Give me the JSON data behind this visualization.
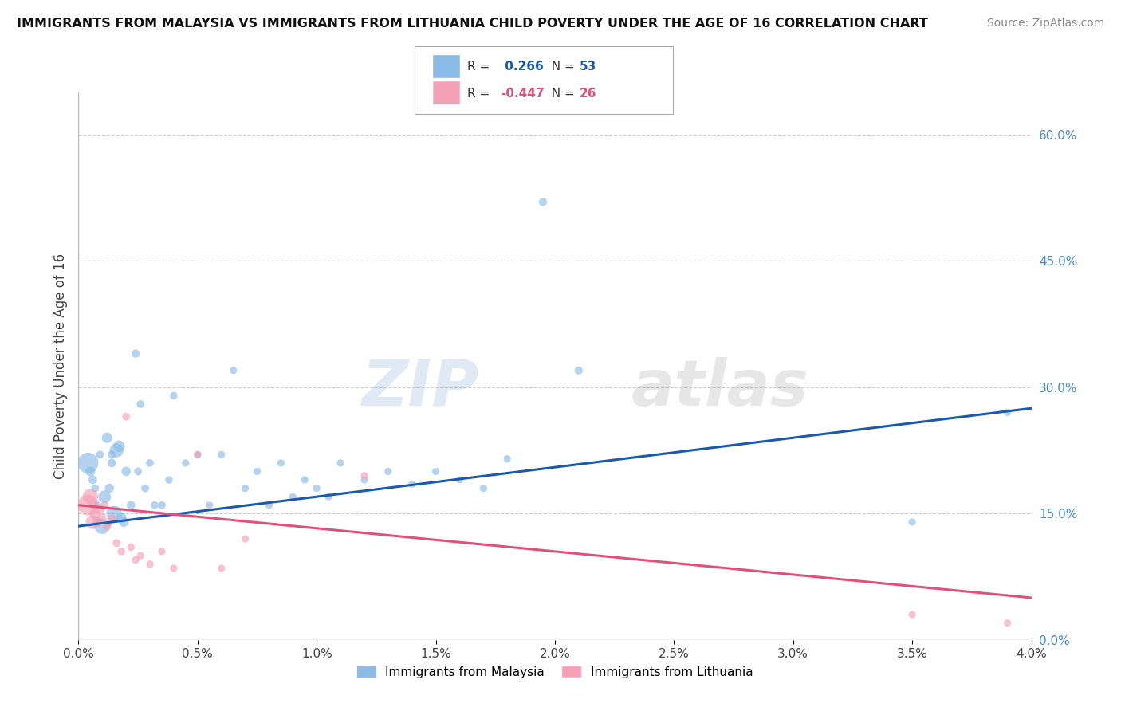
{
  "title": "IMMIGRANTS FROM MALAYSIA VS IMMIGRANTS FROM LITHUANIA CHILD POVERTY UNDER THE AGE OF 16 CORRELATION CHART",
  "source": "Source: ZipAtlas.com",
  "ylabel": "Child Poverty Under the Age of 16",
  "xmin": 0.0,
  "xmax": 4.0,
  "ymin": 0.0,
  "ymax": 65.0,
  "right_yticks": [
    0.0,
    15.0,
    30.0,
    45.0,
    60.0
  ],
  "malaysia_R": 0.266,
  "malaysia_N": 53,
  "lithuania_R": -0.447,
  "lithuania_N": 26,
  "malaysia_color": "#8bbce8",
  "lithuania_color": "#f4a0b5",
  "malaysia_line_color": "#1a5aaa",
  "lithuania_line_color": "#e0507a",
  "malaysia_x": [
    0.04,
    0.05,
    0.06,
    0.07,
    0.08,
    0.09,
    0.1,
    0.11,
    0.12,
    0.13,
    0.14,
    0.14,
    0.15,
    0.16,
    0.17,
    0.18,
    0.19,
    0.2,
    0.22,
    0.24,
    0.25,
    0.26,
    0.28,
    0.3,
    0.32,
    0.35,
    0.38,
    0.4,
    0.45,
    0.5,
    0.55,
    0.6,
    0.65,
    0.7,
    0.75,
    0.8,
    0.85,
    0.9,
    0.95,
    1.0,
    1.05,
    1.1,
    1.2,
    1.3,
    1.4,
    1.5,
    1.6,
    1.7,
    1.8,
    1.95,
    2.1,
    3.5,
    3.9
  ],
  "malaysia_y": [
    21.0,
    20.0,
    19.0,
    18.0,
    16.0,
    22.0,
    13.5,
    17.0,
    24.0,
    18.0,
    21.0,
    22.0,
    15.0,
    22.5,
    23.0,
    14.5,
    14.0,
    20.0,
    16.0,
    34.0,
    20.0,
    28.0,
    18.0,
    21.0,
    16.0,
    16.0,
    19.0,
    29.0,
    21.0,
    22.0,
    16.0,
    22.0,
    32.0,
    18.0,
    20.0,
    16.0,
    21.0,
    17.0,
    19.0,
    18.0,
    17.0,
    21.0,
    19.0,
    20.0,
    18.5,
    20.0,
    19.0,
    18.0,
    21.5,
    52.0,
    32.0,
    14.0,
    27.0
  ],
  "malaysia_sizes": [
    350,
    80,
    60,
    50,
    50,
    50,
    200,
    130,
    90,
    70,
    60,
    55,
    200,
    160,
    110,
    90,
    80,
    70,
    60,
    55,
    50,
    50,
    50,
    50,
    48,
    48,
    46,
    46,
    44,
    44,
    44,
    44,
    44,
    44,
    44,
    44,
    44,
    44,
    44,
    44,
    44,
    44,
    44,
    44,
    44,
    44,
    44,
    44,
    44,
    55,
    55,
    44,
    44
  ],
  "lithuania_x": [
    0.04,
    0.05,
    0.06,
    0.07,
    0.08,
    0.09,
    0.1,
    0.11,
    0.12,
    0.13,
    0.14,
    0.16,
    0.18,
    0.2,
    0.22,
    0.24,
    0.26,
    0.3,
    0.35,
    0.4,
    0.5,
    0.6,
    0.7,
    1.2,
    3.5,
    3.9
  ],
  "lithuania_y": [
    16.0,
    17.0,
    14.0,
    15.0,
    14.0,
    15.5,
    14.5,
    16.0,
    13.5,
    14.0,
    14.5,
    11.5,
    10.5,
    26.5,
    11.0,
    9.5,
    10.0,
    9.0,
    10.5,
    8.5,
    22.0,
    8.5,
    12.0,
    19.5,
    3.0,
    2.0
  ],
  "lithuania_sizes": [
    350,
    200,
    160,
    100,
    80,
    70,
    60,
    55,
    55,
    50,
    50,
    50,
    48,
    48,
    46,
    46,
    46,
    44,
    44,
    44,
    44,
    44,
    44,
    44,
    44,
    44
  ],
  "watermark_zip": "ZIP",
  "watermark_atlas": "atlas",
  "grid_color": "#cccccc",
  "bg_color": "#ffffff"
}
